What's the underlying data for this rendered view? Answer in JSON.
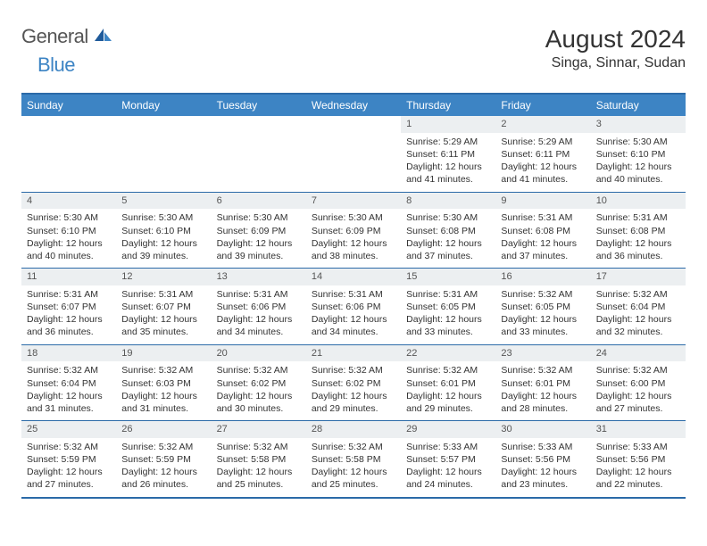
{
  "logo": {
    "text_gray": "General",
    "text_blue": "Blue"
  },
  "header": {
    "month": "August 2024",
    "location": "Singa, Sinnar, Sudan"
  },
  "colors": {
    "accent": "#3d84c4",
    "border": "#2b6aa8",
    "day_bg": "#eceff1",
    "text": "#333333"
  },
  "day_names": [
    "Sunday",
    "Monday",
    "Tuesday",
    "Wednesday",
    "Thursday",
    "Friday",
    "Saturday"
  ],
  "weeks": [
    [
      {
        "n": "",
        "sr": "",
        "ss": "",
        "dl": ""
      },
      {
        "n": "",
        "sr": "",
        "ss": "",
        "dl": ""
      },
      {
        "n": "",
        "sr": "",
        "ss": "",
        "dl": ""
      },
      {
        "n": "",
        "sr": "",
        "ss": "",
        "dl": ""
      },
      {
        "n": "1",
        "sr": "Sunrise: 5:29 AM",
        "ss": "Sunset: 6:11 PM",
        "dl": "Daylight: 12 hours and 41 minutes."
      },
      {
        "n": "2",
        "sr": "Sunrise: 5:29 AM",
        "ss": "Sunset: 6:11 PM",
        "dl": "Daylight: 12 hours and 41 minutes."
      },
      {
        "n": "3",
        "sr": "Sunrise: 5:30 AM",
        "ss": "Sunset: 6:10 PM",
        "dl": "Daylight: 12 hours and 40 minutes."
      }
    ],
    [
      {
        "n": "4",
        "sr": "Sunrise: 5:30 AM",
        "ss": "Sunset: 6:10 PM",
        "dl": "Daylight: 12 hours and 40 minutes."
      },
      {
        "n": "5",
        "sr": "Sunrise: 5:30 AM",
        "ss": "Sunset: 6:10 PM",
        "dl": "Daylight: 12 hours and 39 minutes."
      },
      {
        "n": "6",
        "sr": "Sunrise: 5:30 AM",
        "ss": "Sunset: 6:09 PM",
        "dl": "Daylight: 12 hours and 39 minutes."
      },
      {
        "n": "7",
        "sr": "Sunrise: 5:30 AM",
        "ss": "Sunset: 6:09 PM",
        "dl": "Daylight: 12 hours and 38 minutes."
      },
      {
        "n": "8",
        "sr": "Sunrise: 5:30 AM",
        "ss": "Sunset: 6:08 PM",
        "dl": "Daylight: 12 hours and 37 minutes."
      },
      {
        "n": "9",
        "sr": "Sunrise: 5:31 AM",
        "ss": "Sunset: 6:08 PM",
        "dl": "Daylight: 12 hours and 37 minutes."
      },
      {
        "n": "10",
        "sr": "Sunrise: 5:31 AM",
        "ss": "Sunset: 6:08 PM",
        "dl": "Daylight: 12 hours and 36 minutes."
      }
    ],
    [
      {
        "n": "11",
        "sr": "Sunrise: 5:31 AM",
        "ss": "Sunset: 6:07 PM",
        "dl": "Daylight: 12 hours and 36 minutes."
      },
      {
        "n": "12",
        "sr": "Sunrise: 5:31 AM",
        "ss": "Sunset: 6:07 PM",
        "dl": "Daylight: 12 hours and 35 minutes."
      },
      {
        "n": "13",
        "sr": "Sunrise: 5:31 AM",
        "ss": "Sunset: 6:06 PM",
        "dl": "Daylight: 12 hours and 34 minutes."
      },
      {
        "n": "14",
        "sr": "Sunrise: 5:31 AM",
        "ss": "Sunset: 6:06 PM",
        "dl": "Daylight: 12 hours and 34 minutes."
      },
      {
        "n": "15",
        "sr": "Sunrise: 5:31 AM",
        "ss": "Sunset: 6:05 PM",
        "dl": "Daylight: 12 hours and 33 minutes."
      },
      {
        "n": "16",
        "sr": "Sunrise: 5:32 AM",
        "ss": "Sunset: 6:05 PM",
        "dl": "Daylight: 12 hours and 33 minutes."
      },
      {
        "n": "17",
        "sr": "Sunrise: 5:32 AM",
        "ss": "Sunset: 6:04 PM",
        "dl": "Daylight: 12 hours and 32 minutes."
      }
    ],
    [
      {
        "n": "18",
        "sr": "Sunrise: 5:32 AM",
        "ss": "Sunset: 6:04 PM",
        "dl": "Daylight: 12 hours and 31 minutes."
      },
      {
        "n": "19",
        "sr": "Sunrise: 5:32 AM",
        "ss": "Sunset: 6:03 PM",
        "dl": "Daylight: 12 hours and 31 minutes."
      },
      {
        "n": "20",
        "sr": "Sunrise: 5:32 AM",
        "ss": "Sunset: 6:02 PM",
        "dl": "Daylight: 12 hours and 30 minutes."
      },
      {
        "n": "21",
        "sr": "Sunrise: 5:32 AM",
        "ss": "Sunset: 6:02 PM",
        "dl": "Daylight: 12 hours and 29 minutes."
      },
      {
        "n": "22",
        "sr": "Sunrise: 5:32 AM",
        "ss": "Sunset: 6:01 PM",
        "dl": "Daylight: 12 hours and 29 minutes."
      },
      {
        "n": "23",
        "sr": "Sunrise: 5:32 AM",
        "ss": "Sunset: 6:01 PM",
        "dl": "Daylight: 12 hours and 28 minutes."
      },
      {
        "n": "24",
        "sr": "Sunrise: 5:32 AM",
        "ss": "Sunset: 6:00 PM",
        "dl": "Daylight: 12 hours and 27 minutes."
      }
    ],
    [
      {
        "n": "25",
        "sr": "Sunrise: 5:32 AM",
        "ss": "Sunset: 5:59 PM",
        "dl": "Daylight: 12 hours and 27 minutes."
      },
      {
        "n": "26",
        "sr": "Sunrise: 5:32 AM",
        "ss": "Sunset: 5:59 PM",
        "dl": "Daylight: 12 hours and 26 minutes."
      },
      {
        "n": "27",
        "sr": "Sunrise: 5:32 AM",
        "ss": "Sunset: 5:58 PM",
        "dl": "Daylight: 12 hours and 25 minutes."
      },
      {
        "n": "28",
        "sr": "Sunrise: 5:32 AM",
        "ss": "Sunset: 5:58 PM",
        "dl": "Daylight: 12 hours and 25 minutes."
      },
      {
        "n": "29",
        "sr": "Sunrise: 5:33 AM",
        "ss": "Sunset: 5:57 PM",
        "dl": "Daylight: 12 hours and 24 minutes."
      },
      {
        "n": "30",
        "sr": "Sunrise: 5:33 AM",
        "ss": "Sunset: 5:56 PM",
        "dl": "Daylight: 12 hours and 23 minutes."
      },
      {
        "n": "31",
        "sr": "Sunrise: 5:33 AM",
        "ss": "Sunset: 5:56 PM",
        "dl": "Daylight: 12 hours and 22 minutes."
      }
    ]
  ]
}
